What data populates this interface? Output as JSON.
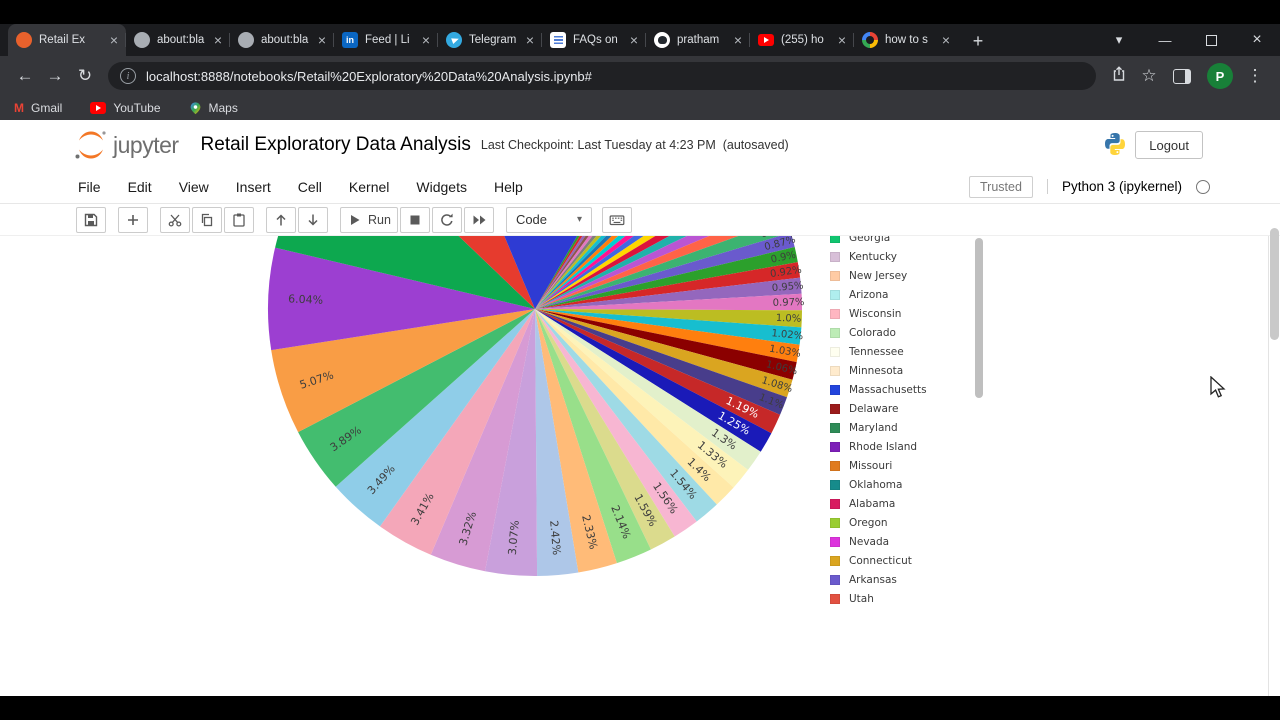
{
  "browser": {
    "tabs": [
      {
        "title": "Retail Ex",
        "icon": "jupyter",
        "active": true
      },
      {
        "title": "about:bla",
        "icon": "globe",
        "active": false
      },
      {
        "title": "about:bla",
        "icon": "globe",
        "active": false
      },
      {
        "title": "Feed | Li",
        "icon": "linkedin",
        "active": false
      },
      {
        "title": "Telegram",
        "icon": "telegram",
        "active": false
      },
      {
        "title": "FAQs on",
        "icon": "faq",
        "active": false
      },
      {
        "title": "pratham",
        "icon": "github",
        "active": false
      },
      {
        "title": "(255) ho",
        "icon": "youtube",
        "active": false
      },
      {
        "title": "how to s",
        "icon": "google",
        "active": false
      }
    ],
    "url": "localhost:8888/notebooks/Retail%20Exploratory%20Data%20Analysis.ipynb#",
    "bookmarks": [
      {
        "label": "Gmail",
        "icon": "gmail"
      },
      {
        "label": "YouTube",
        "icon": "youtube"
      },
      {
        "label": "Maps",
        "icon": "maps"
      }
    ],
    "avatar_letter": "P",
    "avatar_color": "#188038"
  },
  "icons": {
    "back": "←",
    "forward": "→",
    "refresh": "↻",
    "star": "☆",
    "menu_dots": "⋮",
    "caret_down": "▾",
    "close": "×",
    "minimize": "—",
    "new_tab": "+",
    "info": "i"
  },
  "jupyter": {
    "logo_text": "jupyter",
    "title": "Retail Exploratory Data Analysis",
    "checkpoint": "Last Checkpoint: Last Tuesday at 4:23 PM",
    "autosaved": "(autosaved)",
    "logout_label": "Logout",
    "menu": [
      "File",
      "Edit",
      "View",
      "Insert",
      "Cell",
      "Kernel",
      "Widgets",
      "Help"
    ],
    "trusted_label": "Trusted",
    "kernel_label": "Python 3 (ipykernel)",
    "run_label": "Run",
    "cell_type": "Code"
  },
  "chart_data": {
    "type": "pie",
    "title": "",
    "legend_position": "right",
    "start_angle_deg": 60,
    "direction": "clockwise",
    "slice_fields": [
      "percent",
      "color",
      "label",
      "white_label"
    ],
    "slices": [
      [
        0.4,
        "#2CA02C",
        "0.4%",
        0
      ],
      [
        0.42,
        "#D62728",
        "0.42%",
        0
      ],
      [
        0.45,
        "#9467BD",
        "0.45%",
        0
      ],
      [
        0.47,
        "#8C564B",
        "0.47%",
        0
      ],
      [
        0.5,
        "#E377C2",
        "0.5%",
        0
      ],
      [
        0.52,
        "#7F7F7F",
        "0.52%",
        0
      ],
      [
        0.55,
        "#BCBD22",
        "0.55%",
        0
      ],
      [
        0.57,
        "#17BECF",
        "0.57%",
        0
      ],
      [
        0.6,
        "#1F77B4",
        "0.6%",
        0
      ],
      [
        0.62,
        "#FF7F0E",
        "0.62%",
        0
      ],
      [
        0.65,
        "#00CED1",
        "0.65%",
        0
      ],
      [
        0.67,
        "#FF1493",
        "0.67%",
        0
      ],
      [
        0.7,
        "#4169E1",
        "0.7%",
        0
      ],
      [
        0.72,
        "#FFD700",
        "0.72%",
        0
      ],
      [
        0.75,
        "#DC143C",
        "0.75%",
        0
      ],
      [
        0.77,
        "#20B2AA",
        "0.77%",
        0
      ],
      [
        0.8,
        "#BA55D3",
        "0.8%",
        0
      ],
      [
        0.82,
        "#FF6347",
        "0.82%",
        0
      ],
      [
        0.85,
        "#3CB371",
        "0.85%",
        0
      ],
      [
        0.87,
        "#6A5ACD",
        "0.87%",
        0
      ],
      [
        0.9,
        "#2CA02C",
        "0.9%",
        0
      ],
      [
        0.92,
        "#D62728",
        "0.92%",
        0
      ],
      [
        0.95,
        "#9467BD",
        "0.95%",
        0
      ],
      [
        0.97,
        "#E377C2",
        "0.97%",
        0
      ],
      [
        1.0,
        "#BCBD22",
        "1.0%",
        0
      ],
      [
        1.02,
        "#17BECF",
        "1.02%",
        0
      ],
      [
        1.03,
        "#FF7F0E",
        "1.03%",
        0
      ],
      [
        1.06,
        "#8B0000",
        "1.06%",
        0
      ],
      [
        1.08,
        "#DAA520",
        "1.08%",
        0
      ],
      [
        1.1,
        "#483D8B",
        "1.1%",
        0
      ],
      [
        1.19,
        "#C62828",
        "1.19%",
        1
      ],
      [
        1.25,
        "#1A1AB8",
        "1.25%",
        1
      ],
      [
        1.3,
        "#E2F0CB",
        "1.3%",
        0
      ],
      [
        1.33,
        "#FDF3B9",
        "1.33%",
        0
      ],
      [
        1.4,
        "#FFE9A8",
        "1.4%",
        0
      ],
      [
        1.54,
        "#9EDAE5",
        "1.54%",
        0
      ],
      [
        1.56,
        "#F7B6D2",
        "1.56%",
        0
      ],
      [
        1.59,
        "#DBDB8D",
        "1.59%",
        0
      ],
      [
        2.14,
        "#98DF8A",
        "2.14%",
        0
      ],
      [
        2.33,
        "#FFBB78",
        "2.33%",
        0
      ],
      [
        2.42,
        "#AEC7E8",
        "2.42%",
        0
      ],
      [
        3.07,
        "#C9A0DC",
        "3.07%",
        0
      ],
      [
        3.32,
        "#D79BD4",
        "3.32%",
        0
      ],
      [
        3.41,
        "#F4A7B9",
        "3.41%",
        0
      ],
      [
        3.49,
        "#8FCDE8",
        "3.49%",
        0
      ],
      [
        3.89,
        "#43BD6F",
        "3.89%",
        0
      ],
      [
        5.07,
        "#F99D45",
        "5.07%",
        0
      ],
      [
        6.04,
        "#9C3FD1",
        "6.04%",
        0
      ],
      [
        8.3,
        "#0DA84F",
        "",
        0
      ],
      [
        6.4,
        "#E63B2E",
        "",
        0
      ],
      [
        14.4,
        "#2E3BD3",
        "",
        0
      ]
    ],
    "legend": [
      {
        "label": "Georgia",
        "color": "#10C46F"
      },
      {
        "label": "Kentucky",
        "color": "#D8BFD8"
      },
      {
        "label": "New Jersey",
        "color": "#FFCBA4"
      },
      {
        "label": "Arizona",
        "color": "#AFEEEE"
      },
      {
        "label": "Wisconsin",
        "color": "#FFB6C1"
      },
      {
        "label": "Colorado",
        "color": "#BDECB6"
      },
      {
        "label": "Tennessee",
        "color": "#FFFFF0"
      },
      {
        "label": "Minnesota",
        "color": "#FFEBCD"
      },
      {
        "label": "Massachusetts",
        "color": "#2244DD"
      },
      {
        "label": "Delaware",
        "color": "#9B1B1B"
      },
      {
        "label": "Maryland",
        "color": "#2E8B57"
      },
      {
        "label": "Rhode Island",
        "color": "#7D1FB8"
      },
      {
        "label": "Missouri",
        "color": "#E07B1F"
      },
      {
        "label": "Oklahoma",
        "color": "#168B8B"
      },
      {
        "label": "Alabama",
        "color": "#D81B60"
      },
      {
        "label": "Oregon",
        "color": "#9ACD32"
      },
      {
        "label": "Nevada",
        "color": "#DD33DD"
      },
      {
        "label": "Connecticut",
        "color": "#DAA520"
      },
      {
        "label": "Arkansas",
        "color": "#6A5ACD"
      },
      {
        "label": "Utah",
        "color": "#E25141"
      },
      {
        "label": "",
        "color": "#00A896"
      }
    ],
    "legend_clipped": "top_and_bottom"
  }
}
